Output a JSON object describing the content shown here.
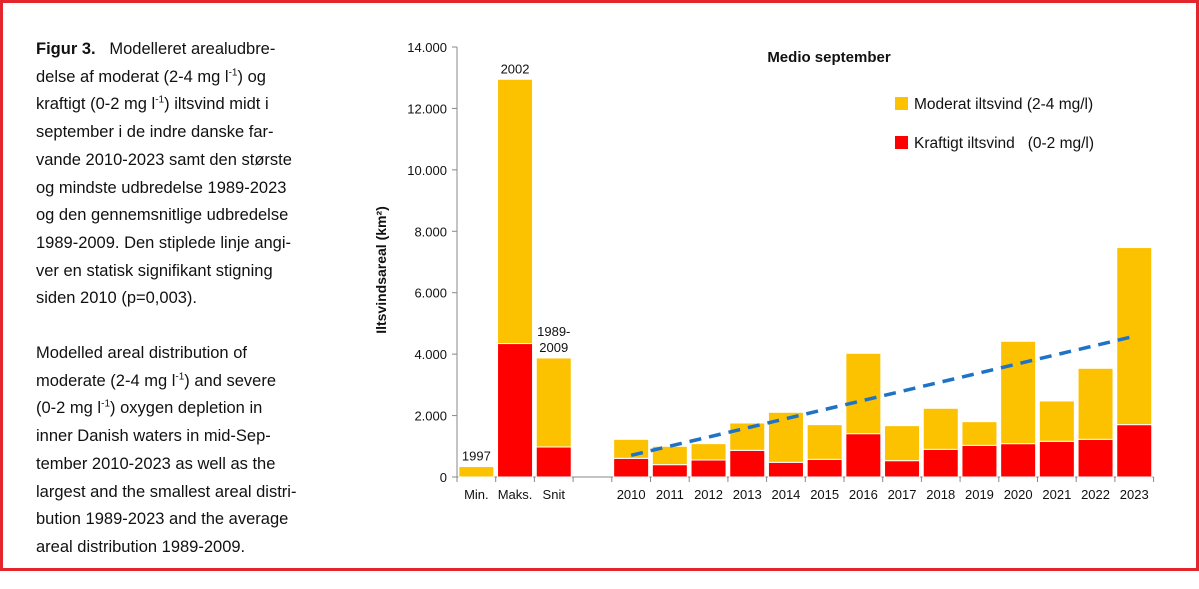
{
  "caption": {
    "danish_lines": [
      [
        {
          "b": "Figur 3."
        },
        {
          "t": "   Modelleret arealudbre-"
        }
      ],
      [
        {
          "t": "delse af moderat (2-4 mg l"
        },
        {
          "s": "-1"
        },
        {
          "t": ") og"
        }
      ],
      [
        {
          "t": "kraftigt (0-2 mg l"
        },
        {
          "s": "-1"
        },
        {
          "t": ") iltsvind midt i"
        }
      ],
      [
        {
          "t": "september i de indre danske far-"
        }
      ],
      [
        {
          "t": "vande 2010-2023 samt den største"
        }
      ],
      [
        {
          "t": "og mindste udbredelse 1989-2023"
        }
      ],
      [
        {
          "t": "og den gennemsnitlige udbredelse"
        }
      ],
      [
        {
          "t": "1989-2009. Den stiplede linje angi-"
        }
      ],
      [
        {
          "t": "ver en statisk signifikant stigning"
        }
      ],
      [
        {
          "t": "siden 2010 (p=0,003)."
        }
      ]
    ],
    "english_lines": [
      [
        {
          "t": "Modelled areal distribution of"
        }
      ],
      [
        {
          "t": "moderate (2-4 mg l"
        },
        {
          "s": "-1"
        },
        {
          "t": ") and severe"
        }
      ],
      [
        {
          "t": "(0-2 mg l"
        },
        {
          "s": "-1"
        },
        {
          "t": ") oxygen depletion in"
        }
      ],
      [
        {
          "t": "inner Danish waters in mid-Sep-"
        }
      ],
      [
        {
          "t": "tember 2010-2023 as well as the"
        }
      ],
      [
        {
          "t": "largest and the smallest areal distri-"
        }
      ],
      [
        {
          "t": "bution 1989-2023 and the average"
        }
      ],
      [
        {
          "t": "areal distribution 1989-2009."
        }
      ]
    ]
  },
  "chart_data": {
    "type": "bar",
    "stacked": true,
    "title": "Medio september",
    "ylabel": "Iltsvindsareal (km²)",
    "xlabel": "",
    "ylim": [
      0,
      14000
    ],
    "yticks": [
      0,
      2000,
      4000,
      6000,
      8000,
      10000,
      12000,
      14000
    ],
    "ytick_labels": [
      "0",
      "2.000",
      "4.000",
      "6.000",
      "8.000",
      "10.000",
      "12.000",
      "14.000"
    ],
    "categories": [
      "Min.",
      "Maks.",
      "Snit",
      "",
      "2010",
      "2011",
      "2012",
      "2013",
      "2014",
      "2015",
      "2016",
      "2017",
      "2018",
      "2019",
      "2020",
      "2021",
      "2022",
      "2023"
    ],
    "bar_annotations": {
      "Min.": "1997",
      "Maks.": "2002",
      "Snit": "1989-\n2009"
    },
    "series": [
      {
        "name": "Kraftigt iltsvind   (0-2 mg/l)",
        "color": "#ff0000",
        "values": [
          0,
          4345,
          977,
          null,
          608,
          402,
          554,
          868,
          478,
          575,
          1411,
          532,
          901,
          1031,
          1086,
          1162,
          1227,
          1705
        ]
      },
      {
        "name": "Moderat iltsvind (2-4 mg/l)",
        "color": "#fcc200",
        "values": [
          340,
          8605,
          2899,
          null,
          619,
          598,
          532,
          891,
          1629,
          1130,
          2617,
          1140,
          1336,
          771,
          3333,
          1314,
          2313,
          5765
        ]
      }
    ],
    "trendline": {
      "from": "2010",
      "to": "2023",
      "y_start": 706,
      "y_end": 4582,
      "color": "#1f73c6",
      "style": "dashed"
    },
    "legend_placement": "top-right",
    "grid": false
  }
}
